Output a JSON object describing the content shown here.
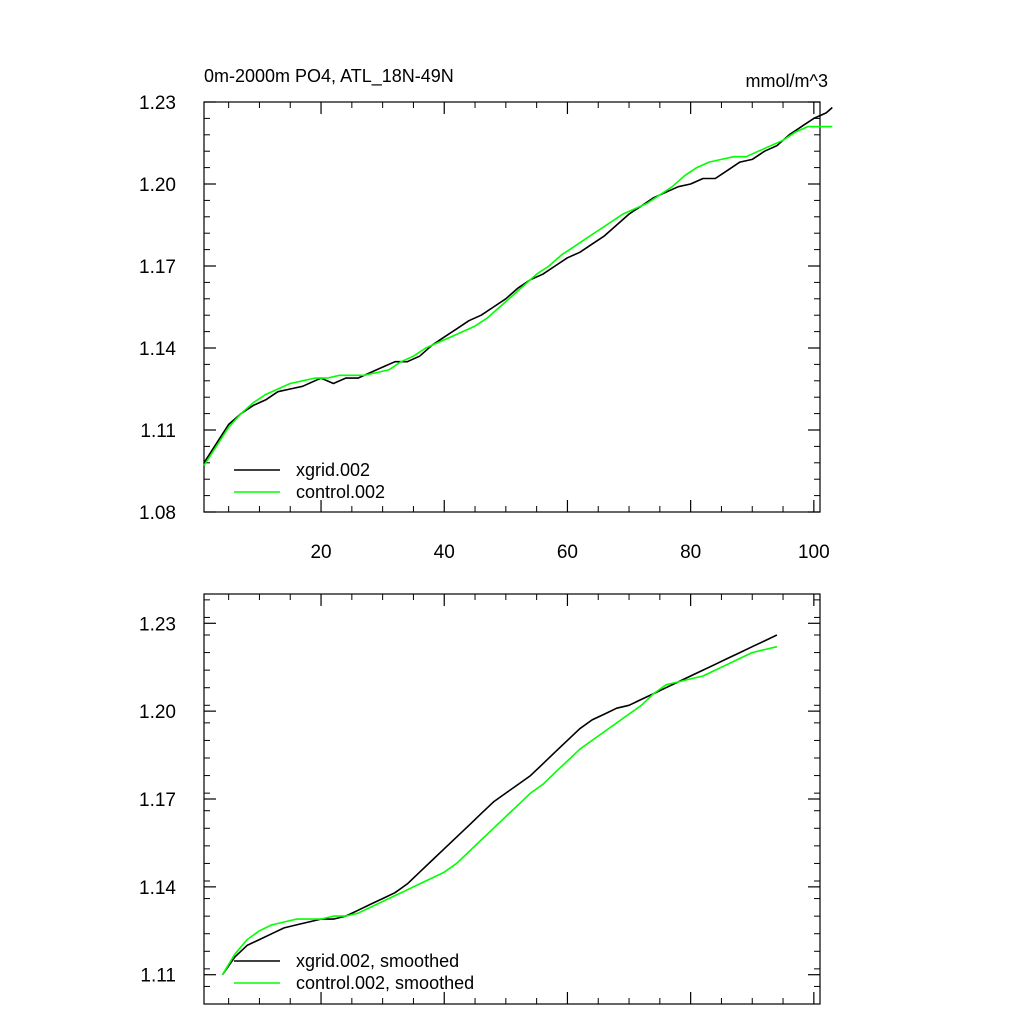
{
  "chart_data": [
    {
      "type": "line",
      "title": "0m-2000m PO4, ATL_18N-49N",
      "units": "mmol/m^3",
      "xlim": [
        1,
        101
      ],
      "ylim": [
        1.08,
        1.23
      ],
      "yticks": [
        "1.08",
        "1.11",
        "1.14",
        "1.17",
        "1.20",
        "1.23"
      ],
      "xticks": [
        "20",
        "40",
        "60",
        "80",
        "100"
      ],
      "series": [
        {
          "name": "xgrid.002",
          "color": "#000000",
          "points": [
            [
              1,
              1.098
            ],
            [
              3,
              1.105
            ],
            [
              5,
              1.112
            ],
            [
              7,
              1.116
            ],
            [
              9,
              1.119
            ],
            [
              11,
              1.121
            ],
            [
              13,
              1.124
            ],
            [
              15,
              1.125
            ],
            [
              17,
              1.126
            ],
            [
              19,
              1.128
            ],
            [
              20,
              1.129
            ],
            [
              22,
              1.127
            ],
            [
              24,
              1.129
            ],
            [
              26,
              1.129
            ],
            [
              28,
              1.131
            ],
            [
              30,
              1.133
            ],
            [
              32,
              1.135
            ],
            [
              34,
              1.135
            ],
            [
              36,
              1.137
            ],
            [
              38,
              1.141
            ],
            [
              40,
              1.144
            ],
            [
              42,
              1.147
            ],
            [
              44,
              1.15
            ],
            [
              46,
              1.152
            ],
            [
              48,
              1.155
            ],
            [
              50,
              1.158
            ],
            [
              52,
              1.162
            ],
            [
              54,
              1.165
            ],
            [
              56,
              1.167
            ],
            [
              58,
              1.17
            ],
            [
              60,
              1.173
            ],
            [
              62,
              1.175
            ],
            [
              64,
              1.178
            ],
            [
              66,
              1.181
            ],
            [
              68,
              1.185
            ],
            [
              70,
              1.189
            ],
            [
              72,
              1.192
            ],
            [
              74,
              1.195
            ],
            [
              76,
              1.197
            ],
            [
              78,
              1.199
            ],
            [
              80,
              1.2
            ],
            [
              82,
              1.202
            ],
            [
              84,
              1.202
            ],
            [
              86,
              1.205
            ],
            [
              88,
              1.208
            ],
            [
              90,
              1.209
            ],
            [
              92,
              1.212
            ],
            [
              94,
              1.214
            ],
            [
              96,
              1.218
            ],
            [
              98,
              1.221
            ],
            [
              100,
              1.224
            ],
            [
              102,
              1.226
            ],
            [
              103,
              1.228
            ]
          ]
        },
        {
          "name": "control.002",
          "color": "#00ff00",
          "points": [
            [
              1,
              1.097
            ],
            [
              3,
              1.104
            ],
            [
              5,
              1.111
            ],
            [
              7,
              1.116
            ],
            [
              9,
              1.12
            ],
            [
              11,
              1.123
            ],
            [
              13,
              1.125
            ],
            [
              15,
              1.127
            ],
            [
              17,
              1.128
            ],
            [
              19,
              1.129
            ],
            [
              21,
              1.129
            ],
            [
              23,
              1.13
            ],
            [
              25,
              1.13
            ],
            [
              27,
              1.13
            ],
            [
              29,
              1.131
            ],
            [
              31,
              1.132
            ],
            [
              33,
              1.135
            ],
            [
              35,
              1.137
            ],
            [
              37,
              1.14
            ],
            [
              39,
              1.142
            ],
            [
              41,
              1.144
            ],
            [
              43,
              1.146
            ],
            [
              45,
              1.148
            ],
            [
              47,
              1.151
            ],
            [
              49,
              1.155
            ],
            [
              51,
              1.159
            ],
            [
              53,
              1.163
            ],
            [
              55,
              1.167
            ],
            [
              57,
              1.17
            ],
            [
              59,
              1.174
            ],
            [
              61,
              1.177
            ],
            [
              63,
              1.18
            ],
            [
              65,
              1.183
            ],
            [
              67,
              1.186
            ],
            [
              69,
              1.189
            ],
            [
              71,
              1.191
            ],
            [
              73,
              1.193
            ],
            [
              75,
              1.196
            ],
            [
              77,
              1.199
            ],
            [
              79,
              1.203
            ],
            [
              81,
              1.206
            ],
            [
              83,
              1.208
            ],
            [
              85,
              1.209
            ],
            [
              87,
              1.21
            ],
            [
              89,
              1.21
            ],
            [
              91,
              1.212
            ],
            [
              93,
              1.214
            ],
            [
              95,
              1.216
            ],
            [
              97,
              1.219
            ],
            [
              99,
              1.221
            ],
            [
              101,
              1.221
            ],
            [
              103,
              1.221
            ]
          ]
        }
      ],
      "legend_placement": "bottom-left"
    },
    {
      "type": "line",
      "title": "",
      "xlim": [
        1,
        101
      ],
      "ylim": [
        1.1,
        1.24
      ],
      "yticks": [
        "1.11",
        "1.14",
        "1.17",
        "1.20",
        "1.23"
      ],
      "series": [
        {
          "name": "xgrid.002, smoothed",
          "color": "#000000",
          "points": [
            [
              4,
              1.11
            ],
            [
              6,
              1.116
            ],
            [
              8,
              1.12
            ],
            [
              10,
              1.122
            ],
            [
              12,
              1.124
            ],
            [
              14,
              1.126
            ],
            [
              16,
              1.127
            ],
            [
              18,
              1.128
            ],
            [
              20,
              1.129
            ],
            [
              22,
              1.129
            ],
            [
              24,
              1.13
            ],
            [
              26,
              1.132
            ],
            [
              28,
              1.134
            ],
            [
              30,
              1.136
            ],
            [
              32,
              1.138
            ],
            [
              34,
              1.141
            ],
            [
              36,
              1.145
            ],
            [
              38,
              1.149
            ],
            [
              40,
              1.153
            ],
            [
              42,
              1.157
            ],
            [
              44,
              1.161
            ],
            [
              46,
              1.165
            ],
            [
              48,
              1.169
            ],
            [
              50,
              1.172
            ],
            [
              52,
              1.175
            ],
            [
              54,
              1.178
            ],
            [
              56,
              1.182
            ],
            [
              58,
              1.186
            ],
            [
              60,
              1.19
            ],
            [
              62,
              1.194
            ],
            [
              64,
              1.197
            ],
            [
              66,
              1.199
            ],
            [
              68,
              1.201
            ],
            [
              70,
              1.202
            ],
            [
              72,
              1.204
            ],
            [
              74,
              1.206
            ],
            [
              76,
              1.208
            ],
            [
              78,
              1.21
            ],
            [
              80,
              1.212
            ],
            [
              82,
              1.214
            ],
            [
              84,
              1.216
            ],
            [
              86,
              1.218
            ],
            [
              88,
              1.22
            ],
            [
              90,
              1.222
            ],
            [
              92,
              1.224
            ],
            [
              94,
              1.226
            ]
          ]
        },
        {
          "name": "control.002, smoothed",
          "color": "#00ff00",
          "points": [
            [
              4,
              1.11
            ],
            [
              6,
              1.117
            ],
            [
              8,
              1.122
            ],
            [
              10,
              1.125
            ],
            [
              12,
              1.127
            ],
            [
              14,
              1.128
            ],
            [
              16,
              1.129
            ],
            [
              18,
              1.129
            ],
            [
              20,
              1.129
            ],
            [
              22,
              1.13
            ],
            [
              24,
              1.13
            ],
            [
              26,
              1.131
            ],
            [
              28,
              1.133
            ],
            [
              30,
              1.135
            ],
            [
              32,
              1.137
            ],
            [
              34,
              1.139
            ],
            [
              36,
              1.141
            ],
            [
              38,
              1.143
            ],
            [
              40,
              1.145
            ],
            [
              42,
              1.148
            ],
            [
              44,
              1.152
            ],
            [
              46,
              1.156
            ],
            [
              48,
              1.16
            ],
            [
              50,
              1.164
            ],
            [
              52,
              1.168
            ],
            [
              54,
              1.172
            ],
            [
              56,
              1.175
            ],
            [
              58,
              1.179
            ],
            [
              60,
              1.183
            ],
            [
              62,
              1.187
            ],
            [
              64,
              1.19
            ],
            [
              66,
              1.193
            ],
            [
              68,
              1.196
            ],
            [
              70,
              1.199
            ],
            [
              72,
              1.202
            ],
            [
              74,
              1.206
            ],
            [
              76,
              1.209
            ],
            [
              78,
              1.21
            ],
            [
              80,
              1.211
            ],
            [
              82,
              1.212
            ],
            [
              84,
              1.214
            ],
            [
              86,
              1.216
            ],
            [
              88,
              1.218
            ],
            [
              90,
              1.22
            ],
            [
              92,
              1.221
            ],
            [
              94,
              1.222
            ]
          ]
        }
      ],
      "legend_placement": "bottom-left"
    }
  ]
}
